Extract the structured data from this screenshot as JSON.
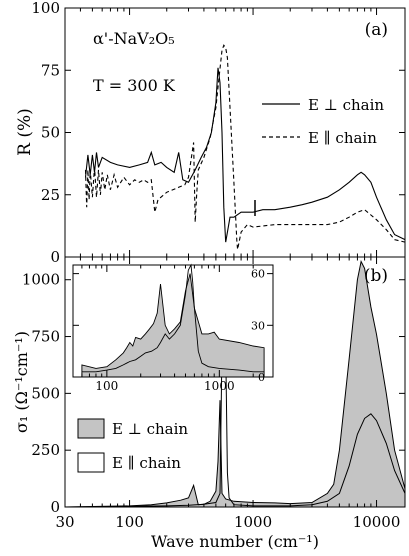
{
  "chart_data": [
    {
      "type": "line",
      "panel_label": "(a)",
      "annotations": {
        "compound": "α'-NaV₂O₅",
        "temperature": "T = 300 K"
      },
      "xlabel": "",
      "ylabel": "R   (%)",
      "xscale": "log",
      "xlim": [
        30,
        17000
      ],
      "ylim": [
        0,
        100
      ],
      "xticks": [
        "30",
        "100",
        "1000",
        "10000"
      ],
      "yticks": [
        "0",
        "25",
        "50",
        "75",
        "100"
      ],
      "legend": {
        "placement": "right",
        "entries": [
          "E ⊥ chain",
          "E ∥ chain"
        ]
      },
      "series": [
        {
          "name": "E ⊥ chain",
          "style": "solid",
          "x": [
            44,
            46,
            48,
            50,
            52,
            54,
            56,
            60,
            70,
            80,
            100,
            120,
            140,
            150,
            160,
            180,
            200,
            230,
            250,
            270,
            300,
            340,
            380,
            420,
            460,
            500,
            520,
            540,
            560,
            580,
            600,
            650,
            700,
            800,
            1000,
            1200,
            1500,
            2000,
            2500,
            3000,
            4000,
            5000,
            6000,
            7000,
            7500,
            8000,
            9000,
            10000,
            12000,
            14000,
            17000
          ],
          "y": [
            32,
            41,
            33,
            41,
            34,
            42,
            36,
            40,
            38,
            37,
            36,
            37,
            38,
            42,
            37,
            38,
            36,
            34,
            42,
            31,
            30,
            35,
            40,
            44,
            50,
            62,
            76,
            70,
            50,
            20,
            6,
            16,
            16,
            18,
            18,
            19,
            19,
            20,
            21,
            22,
            24,
            27,
            30,
            33,
            34,
            33,
            30,
            24,
            15,
            9,
            7
          ]
        },
        {
          "name": "E ∥ chain",
          "style": "dashed",
          "x": [
            44,
            45,
            46,
            47,
            48,
            50,
            52,
            54,
            56,
            58,
            60,
            63,
            66,
            70,
            75,
            80,
            90,
            100,
            110,
            120,
            130,
            140,
            150,
            160,
            170,
            200,
            250,
            280,
            300,
            330,
            340,
            350,
            360,
            400,
            450,
            500,
            530,
            560,
            580,
            600,
            620,
            650,
            700,
            740,
            750,
            800,
            900,
            1000,
            1500,
            2000,
            3000,
            4000,
            5000,
            6000,
            7000,
            8000,
            10000,
            12000,
            14000,
            17000
          ],
          "y": [
            35,
            20,
            35,
            23,
            35,
            24,
            36,
            24,
            35,
            25,
            34,
            27,
            33,
            27,
            33,
            28,
            32,
            29,
            31,
            30,
            31,
            30,
            31,
            18,
            23,
            26,
            28,
            29,
            32,
            46,
            14,
            26,
            35,
            40,
            48,
            60,
            72,
            83,
            85,
            84,
            80,
            60,
            30,
            6,
            3,
            10,
            13,
            12,
            13,
            13,
            13,
            13,
            14,
            16,
            18,
            19,
            15,
            11,
            7,
            6
          ]
        }
      ]
    },
    {
      "type": "area",
      "panel_label": "(b)",
      "xlabel": "Wave number   (cm⁻¹)",
      "ylabel": "σ₁  (Ω⁻¹cm⁻¹)",
      "xscale": "log",
      "xlim": [
        30,
        17000
      ],
      "ylim": [
        0,
        1100
      ],
      "xticks": [
        "30",
        "100",
        "1000",
        "10000"
      ],
      "yticks": [
        "0",
        "250",
        "500",
        "750",
        "1000"
      ],
      "legend": {
        "placement": "bottom-left",
        "entries": [
          "E ⊥ chain",
          "E ∥ chain"
        ]
      },
      "series": [
        {
          "name": "E ⊥ chain",
          "style": "filled gray",
          "x": [
            30,
            100,
            150,
            200,
            260,
            300,
            330,
            360,
            400,
            450,
            500,
            520,
            540,
            560,
            600,
            700,
            1000,
            1500,
            2000,
            3000,
            4000,
            4500,
            5000,
            6000,
            7000,
            7500,
            8000,
            9000,
            10000,
            12000,
            14000,
            17000
          ],
          "y": [
            0,
            5,
            10,
            18,
            30,
            40,
            95,
            10,
            12,
            25,
            70,
            200,
            470,
            60,
            35,
            25,
            20,
            18,
            15,
            20,
            60,
            100,
            250,
            650,
            1000,
            1080,
            1050,
            880,
            760,
            500,
            250,
            80
          ]
        },
        {
          "name": "E ∥ chain",
          "style": "open",
          "x": [
            30,
            100,
            200,
            300,
            400,
            500,
            540,
            560,
            580,
            600,
            620,
            640,
            700,
            1000,
            2000,
            3000,
            4000,
            5000,
            6000,
            7000,
            8000,
            9000,
            10000,
            12000,
            14000,
            17000
          ],
          "y": [
            0,
            3,
            5,
            8,
            12,
            20,
            60,
            700,
            1050,
            700,
            150,
            40,
            10,
            5,
            5,
            10,
            25,
            60,
            180,
            320,
            390,
            410,
            380,
            280,
            160,
            60
          ]
        }
      ]
    },
    {
      "type": "line",
      "panel_label": "inset",
      "xscale": "log",
      "xlim": [
        50,
        3000
      ],
      "ylim": [
        0,
        65
      ],
      "xticks": [
        "100",
        "1000"
      ],
      "yticks": [
        "0",
        "30",
        "60"
      ],
      "series": [
        {
          "name": "E ⊥ chain",
          "style": "filled gray",
          "x": [
            60,
            80,
            100,
            120,
            140,
            150,
            160,
            170,
            180,
            200,
            220,
            240,
            260,
            280,
            300,
            330,
            360,
            400,
            450,
            500,
            550,
            600,
            700,
            800,
            900,
            1000,
            1500,
            2000,
            2500
          ],
          "y": [
            7,
            5,
            6,
            10,
            14,
            17,
            20,
            18,
            23,
            22,
            25,
            28,
            31,
            37,
            54,
            30,
            25,
            28,
            32,
            50,
            60,
            40,
            25,
            25,
            26,
            22,
            20,
            18,
            17
          ]
        },
        {
          "name": "E ∥ chain",
          "style": "open",
          "x": [
            60,
            80,
            100,
            120,
            140,
            160,
            180,
            200,
            220,
            250,
            280,
            300,
            330,
            360,
            400,
            450,
            500,
            530,
            560,
            580,
            600,
            650,
            700,
            800,
            1000,
            1500,
            2000,
            2500
          ],
          "y": [
            3,
            3,
            4,
            5,
            7,
            9,
            10,
            12,
            14,
            15,
            17,
            20,
            25,
            22,
            25,
            30,
            48,
            62,
            65,
            55,
            40,
            15,
            8,
            6,
            5,
            4,
            3,
            3
          ]
        }
      ]
    }
  ]
}
